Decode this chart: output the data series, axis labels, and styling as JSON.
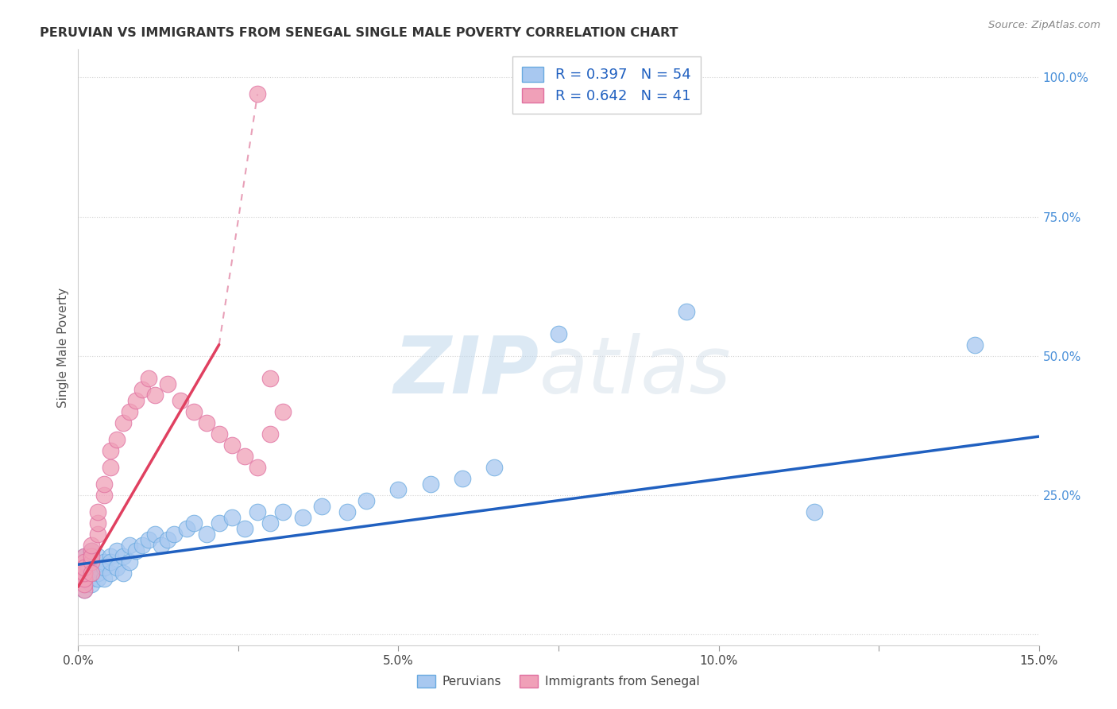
{
  "title": "PERUVIAN VS IMMIGRANTS FROM SENEGAL SINGLE MALE POVERTY CORRELATION CHART",
  "source": "Source: ZipAtlas.com",
  "ylabel": "Single Male Poverty",
  "peruvian_color": "#a8c8f0",
  "peruvian_edge_color": "#6aaae0",
  "senegal_color": "#f0a0b8",
  "senegal_edge_color": "#e070a0",
  "peruvian_line_color": "#2060c0",
  "senegal_line_color": "#e0406080",
  "senegal_line_solid_color": "#e04060",
  "background_color": "#ffffff",
  "watermark_color": "#c8dff0",
  "xlim": [
    0.0,
    0.15
  ],
  "ylim": [
    -0.02,
    1.05
  ],
  "y_tick_positions": [
    0.0,
    0.25,
    0.5,
    0.75,
    1.0
  ],
  "y_tick_labels": [
    "",
    "25.0%",
    "50.0%",
    "75.0%",
    "100.0%"
  ],
  "x_tick_positions": [
    0.0,
    0.025,
    0.05,
    0.075,
    0.1,
    0.125,
    0.15
  ],
  "x_tick_labels": [
    "0.0%",
    "",
    "5.0%",
    "",
    "10.0%",
    "",
    "15.0%"
  ],
  "peru_x": [
    0.001,
    0.001,
    0.001,
    0.001,
    0.001,
    0.002,
    0.002,
    0.002,
    0.002,
    0.002,
    0.003,
    0.003,
    0.003,
    0.003,
    0.004,
    0.004,
    0.004,
    0.005,
    0.005,
    0.005,
    0.006,
    0.006,
    0.007,
    0.007,
    0.008,
    0.008,
    0.009,
    0.01,
    0.011,
    0.012,
    0.013,
    0.014,
    0.015,
    0.017,
    0.018,
    0.02,
    0.022,
    0.024,
    0.026,
    0.028,
    0.03,
    0.032,
    0.035,
    0.038,
    0.042,
    0.045,
    0.05,
    0.055,
    0.06,
    0.065,
    0.075,
    0.095,
    0.115,
    0.14
  ],
  "peru_y": [
    0.12,
    0.1,
    0.14,
    0.11,
    0.08,
    0.13,
    0.11,
    0.1,
    0.09,
    0.15,
    0.12,
    0.1,
    0.14,
    0.11,
    0.13,
    0.1,
    0.12,
    0.14,
    0.11,
    0.13,
    0.15,
    0.12,
    0.14,
    0.11,
    0.16,
    0.13,
    0.15,
    0.16,
    0.17,
    0.18,
    0.16,
    0.17,
    0.18,
    0.19,
    0.2,
    0.18,
    0.2,
    0.21,
    0.19,
    0.22,
    0.2,
    0.22,
    0.21,
    0.23,
    0.22,
    0.24,
    0.26,
    0.27,
    0.28,
    0.3,
    0.54,
    0.58,
    0.22,
    0.52
  ],
  "sen_x": [
    0.001,
    0.001,
    0.001,
    0.001,
    0.001,
    0.001,
    0.001,
    0.001,
    0.001,
    0.001,
    0.002,
    0.002,
    0.002,
    0.002,
    0.002,
    0.003,
    0.003,
    0.003,
    0.004,
    0.004,
    0.005,
    0.005,
    0.006,
    0.007,
    0.008,
    0.009,
    0.01,
    0.011,
    0.012,
    0.014,
    0.016,
    0.018,
    0.02,
    0.022,
    0.024,
    0.026,
    0.028,
    0.03,
    0.032,
    0.028,
    0.03
  ],
  "sen_y": [
    0.1,
    0.12,
    0.11,
    0.08,
    0.14,
    0.09,
    0.13,
    0.1,
    0.11,
    0.12,
    0.13,
    0.15,
    0.14,
    0.16,
    0.11,
    0.18,
    0.2,
    0.22,
    0.25,
    0.27,
    0.3,
    0.33,
    0.35,
    0.38,
    0.4,
    0.42,
    0.44,
    0.46,
    0.43,
    0.45,
    0.42,
    0.4,
    0.38,
    0.36,
    0.34,
    0.32,
    0.3,
    0.36,
    0.4,
    0.97,
    0.46
  ],
  "legend_entries": [
    {
      "label": "R = 0.397   N = 54",
      "color": "#a8c8f0",
      "edge": "#6aaae0"
    },
    {
      "label": "R = 0.642   N = 41",
      "color": "#f0a0b8",
      "edge": "#e070a0"
    }
  ]
}
